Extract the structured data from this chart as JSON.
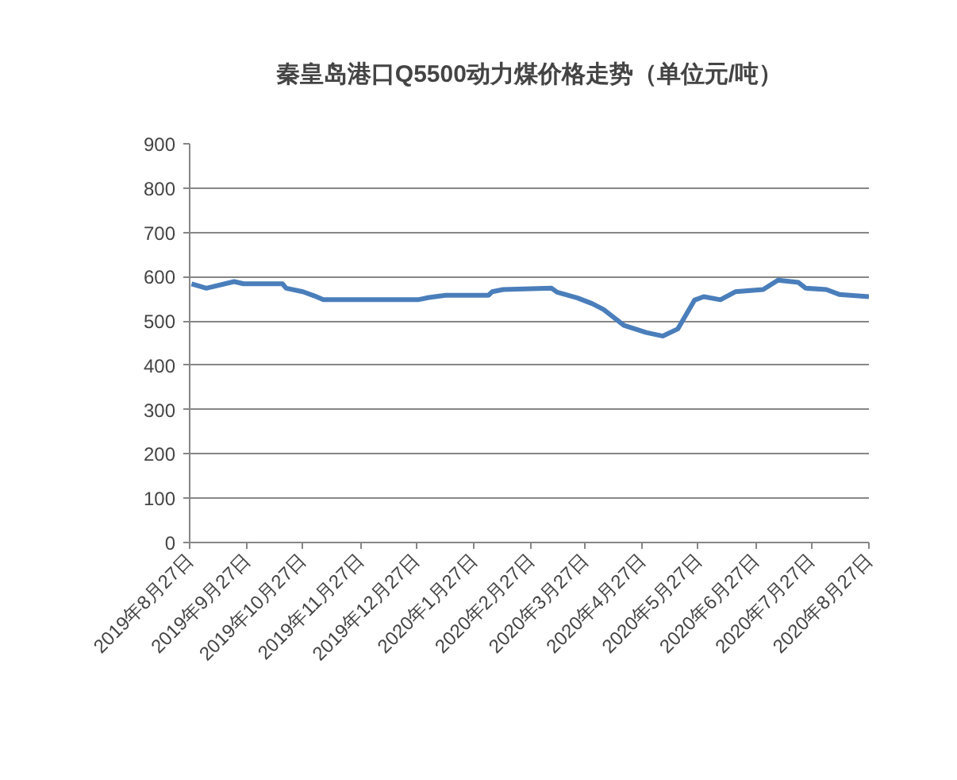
{
  "chart_data": {
    "type": "line",
    "title": "秦皇岛港口Q5500动力煤价格走势（单位元/吨）",
    "x": [
      "2019-08-28",
      "2019-09-05",
      "2019-09-20",
      "2019-09-25",
      "2019-10-16",
      "2019-10-18",
      "2019-10-27",
      "2019-11-02",
      "2019-11-07",
      "2019-12-28",
      "2020-01-03",
      "2020-01-12",
      "2020-02-04",
      "2020-02-06",
      "2020-02-12",
      "2020-03-09",
      "2020-03-12",
      "2020-03-23",
      "2020-03-31",
      "2020-04-06",
      "2020-04-17",
      "2020-04-29",
      "2020-05-08",
      "2020-05-16",
      "2020-05-25",
      "2020-05-30",
      "2020-06-08",
      "2020-06-16",
      "2020-07-01",
      "2020-07-09",
      "2020-07-20",
      "2020-07-24",
      "2020-08-04",
      "2020-08-11",
      "2020-08-27"
    ],
    "series": [
      {
        "color": "#4a7ebb",
        "values": [
          584,
          574,
          589,
          584,
          584,
          574,
          566,
          557,
          548,
          548,
          553,
          558,
          558,
          566,
          571,
          574,
          565,
          552,
          539,
          526,
          490,
          474,
          466,
          482,
          547,
          555,
          548,
          566,
          571,
          592,
          587,
          574,
          571,
          560,
          555
        ]
      }
    ],
    "xlim": [
      "2019-08-27",
      "2020-08-27"
    ],
    "xticks": [
      {
        "value": "2019-08-27",
        "label": "2019年8月27日"
      },
      {
        "value": "2019-09-27",
        "label": "2019年9月27日"
      },
      {
        "value": "2019-10-27",
        "label": "2019年10月27日"
      },
      {
        "value": "2019-11-27",
        "label": "2019年11月27日"
      },
      {
        "value": "2019-12-27",
        "label": "2019年12月27日"
      },
      {
        "value": "2020-01-27",
        "label": "2020年1月27日"
      },
      {
        "value": "2020-02-27",
        "label": "2020年2月27日"
      },
      {
        "value": "2020-03-27",
        "label": "2020年3月27日"
      },
      {
        "value": "2020-04-27",
        "label": "2020年4月27日"
      },
      {
        "value": "2020-05-27",
        "label": "2020年5月27日"
      },
      {
        "value": "2020-06-27",
        "label": "2020年6月27日"
      },
      {
        "value": "2020-07-27",
        "label": "2020年7月27日"
      },
      {
        "value": "2020-08-27",
        "label": "2020年8月27日"
      }
    ],
    "ylim": [
      0,
      900
    ],
    "yticks": [
      0,
      100,
      200,
      300,
      400,
      500,
      600,
      700,
      800,
      900
    ],
    "grid": "y",
    "marker": "none",
    "line_style": "solid"
  }
}
